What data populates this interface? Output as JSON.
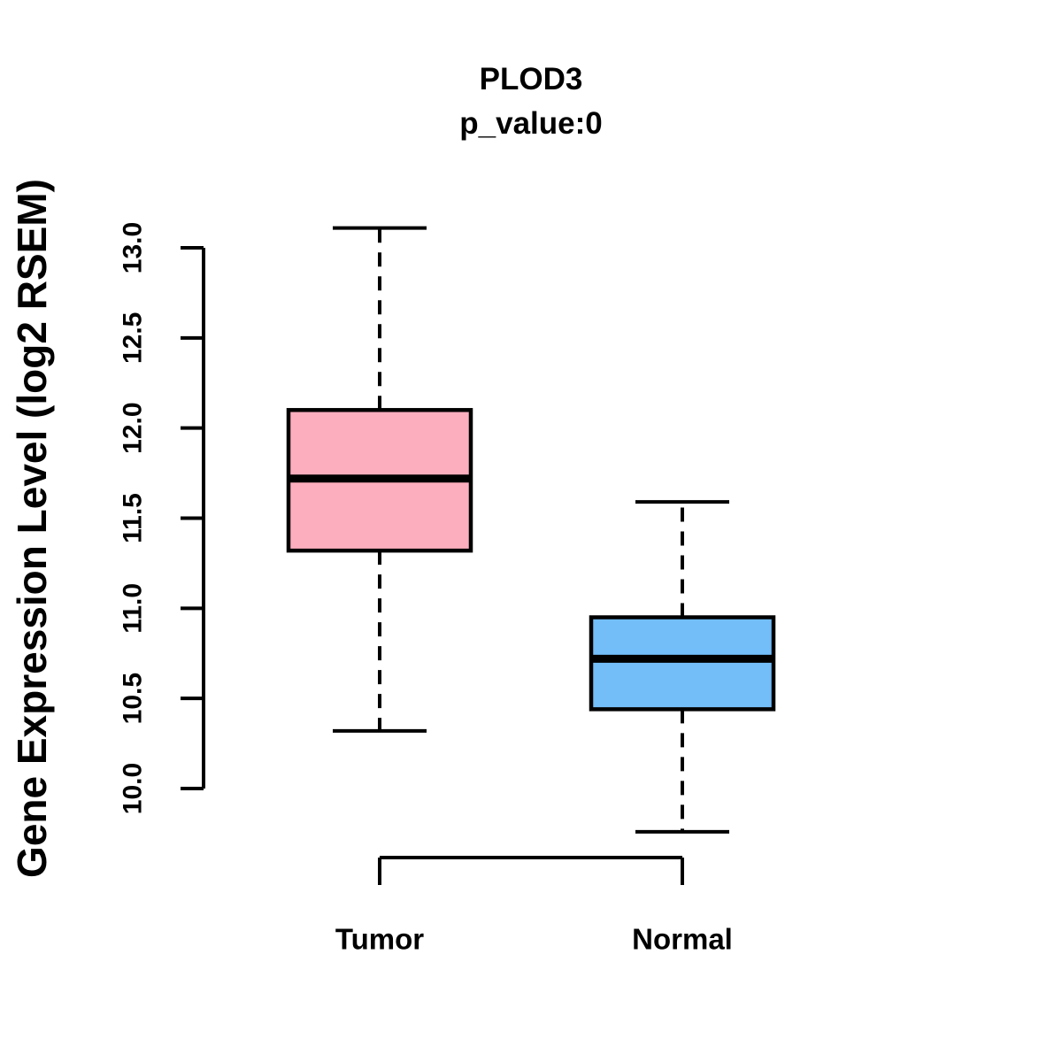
{
  "chart_data": {
    "type": "boxplot",
    "title": "PLOD3",
    "subtitle": "p_value:0",
    "p_value": 0,
    "ylabel": "Gene Expression Level (log2 RSEM)",
    "xlabel": "",
    "ylim": [
      10.0,
      13.0
    ],
    "y_ticks": [
      10.0,
      10.5,
      11.0,
      11.5,
      12.0,
      12.5,
      13.0
    ],
    "y_tick_labels": [
      "10.0",
      "10.5",
      "11.0",
      "11.5",
      "12.0",
      "12.5",
      "13.0"
    ],
    "grid": "off",
    "legend": "none",
    "categories": [
      "Tumor",
      "Normal"
    ],
    "groups": [
      {
        "label": "Tumor",
        "color": "#FDAEBE",
        "whisker_low": 10.32,
        "q1": 11.32,
        "median": 11.72,
        "q3": 12.1,
        "whisker_high": 13.11
      },
      {
        "label": "Normal",
        "color": "#73BDF8",
        "whisker_low": 9.76,
        "q1": 10.44,
        "median": 10.72,
        "q3": 10.95,
        "whisker_high": 11.59
      }
    ],
    "colors": {
      "stroke": "#000000",
      "background": "#FFFFFF"
    }
  }
}
